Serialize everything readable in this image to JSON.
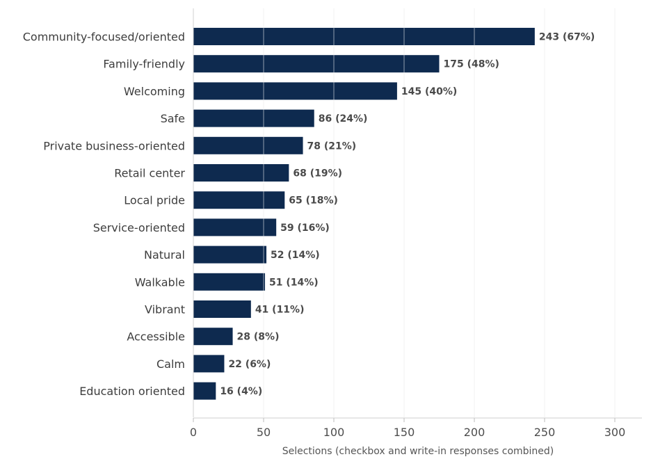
{
  "chart_data": {
    "type": "bar",
    "orientation": "horizontal",
    "title": "",
    "xlabel": "Selections (checkbox and write-in responses combined)",
    "ylabel": "",
    "xlim": [
      0,
      320
    ],
    "xticks": [
      0,
      50,
      100,
      150,
      200,
      250,
      300
    ],
    "grid": "vertical",
    "bar_color": "#0e2a4f",
    "categories": [
      "Community-focused/oriented",
      "Family-friendly",
      "Welcoming",
      "Safe",
      "Private business-oriented",
      "Retail center",
      "Local pride",
      "Service-oriented",
      "Natural",
      "Walkable",
      "Vibrant",
      "Accessible",
      "Calm",
      "Education oriented"
    ],
    "values": [
      243,
      175,
      145,
      86,
      78,
      68,
      65,
      59,
      52,
      51,
      41,
      28,
      22,
      16
    ],
    "data_labels": [
      "243 (67%)",
      "175 (48%)",
      "145 (40%)",
      "86 (24%)",
      "78 (21%)",
      "68 (19%)",
      "65 (18%)",
      "59 (16%)",
      "52 (14%)",
      "51 (14%)",
      "41 (11%)",
      "28 (8%)",
      "22 (6%)",
      "16 (4%)"
    ]
  }
}
